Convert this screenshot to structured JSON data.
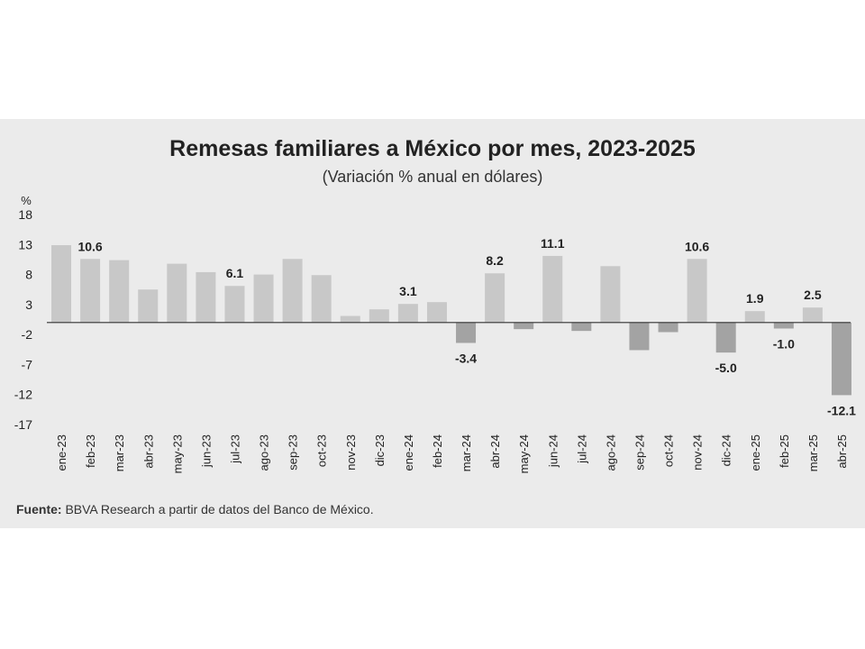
{
  "chart_data": {
    "type": "bar",
    "title": "Remesas familiares a México por mes, 2023-2025",
    "subtitle": "(Variación % anual en dólares)",
    "ylabel": "%",
    "xlabel": "",
    "ylim": [
      -17,
      18
    ],
    "yticks": [
      "18",
      "13",
      "8",
      "3",
      "-2",
      "-7",
      "-12",
      "-17"
    ],
    "categories": [
      "ene-23",
      "feb-23",
      "mar-23",
      "abr-23",
      "may-23",
      "jun-23",
      "jul-23",
      "ago-23",
      "sep-23",
      "oct-23",
      "nov-23",
      "dic-23",
      "ene-24",
      "feb-24",
      "mar-24",
      "abr-24",
      "may-24",
      "jun-24",
      "jul-24",
      "ago-24",
      "sep-24",
      "oct-24",
      "nov-24",
      "dic-24",
      "ene-25",
      "feb-25",
      "mar-25",
      "abr-25"
    ],
    "values": [
      12.9,
      10.6,
      10.4,
      5.5,
      9.8,
      8.4,
      6.1,
      8.0,
      10.6,
      7.9,
      1.1,
      2.2,
      3.1,
      3.4,
      -3.4,
      8.2,
      -1.1,
      11.1,
      -1.4,
      9.4,
      -4.6,
      -1.6,
      10.6,
      -5.0,
      1.9,
      -1.0,
      2.5,
      -12.1
    ],
    "data_labels": [
      {
        "index": 1,
        "text": "10.6"
      },
      {
        "index": 6,
        "text": "6.1"
      },
      {
        "index": 12,
        "text": "3.1"
      },
      {
        "index": 14,
        "text": "-3.4"
      },
      {
        "index": 15,
        "text": "8.2"
      },
      {
        "index": 17,
        "text": "11.1"
      },
      {
        "index": 22,
        "text": "10.6"
      },
      {
        "index": 23,
        "text": "-5.0"
      },
      {
        "index": 24,
        "text": "1.9"
      },
      {
        "index": 25,
        "text": "-1.0"
      },
      {
        "index": 26,
        "text": "2.5"
      },
      {
        "index": 27,
        "text": "-12.1"
      }
    ],
    "colors": {
      "positive": "#c8c8c8",
      "negative": "#a3a3a3",
      "axis": "#333333",
      "text": "#222222"
    }
  },
  "source": {
    "label": "Fuente:",
    "text": " BBVA Research a partir de datos del Banco de México."
  }
}
